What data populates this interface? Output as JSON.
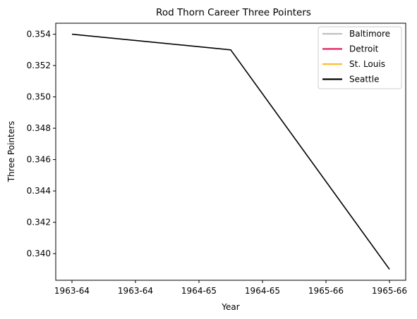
{
  "chart_data": {
    "type": "line",
    "title": "Rod Thorn Career Three Pointers",
    "xlabel": "Year",
    "ylabel": "Three Pointers",
    "x_tick_labels": [
      "1963-64",
      "1963-64",
      "1964-65",
      "1964-65",
      "1965-66",
      "1965-66"
    ],
    "x_range": [
      0,
      5
    ],
    "ylim": [
      0.3383,
      0.3547
    ],
    "y_ticks": [
      "0.340",
      "0.342",
      "0.344",
      "0.346",
      "0.348",
      "0.350",
      "0.352",
      "0.354"
    ],
    "grid": false,
    "legend_position": "top-right",
    "series": [
      {
        "name": "Baltimore",
        "color": "#c0c0c0",
        "x": [],
        "y": []
      },
      {
        "name": "Detroit",
        "color": "#e31b5c",
        "x": [],
        "y": []
      },
      {
        "name": "St. Louis",
        "color": "#fdbb30",
        "x": [],
        "y": []
      },
      {
        "name": "Seattle",
        "color": "#000000",
        "x": [
          0,
          2.5,
          5
        ],
        "y": [
          0.354,
          0.353,
          0.339
        ]
      }
    ]
  }
}
